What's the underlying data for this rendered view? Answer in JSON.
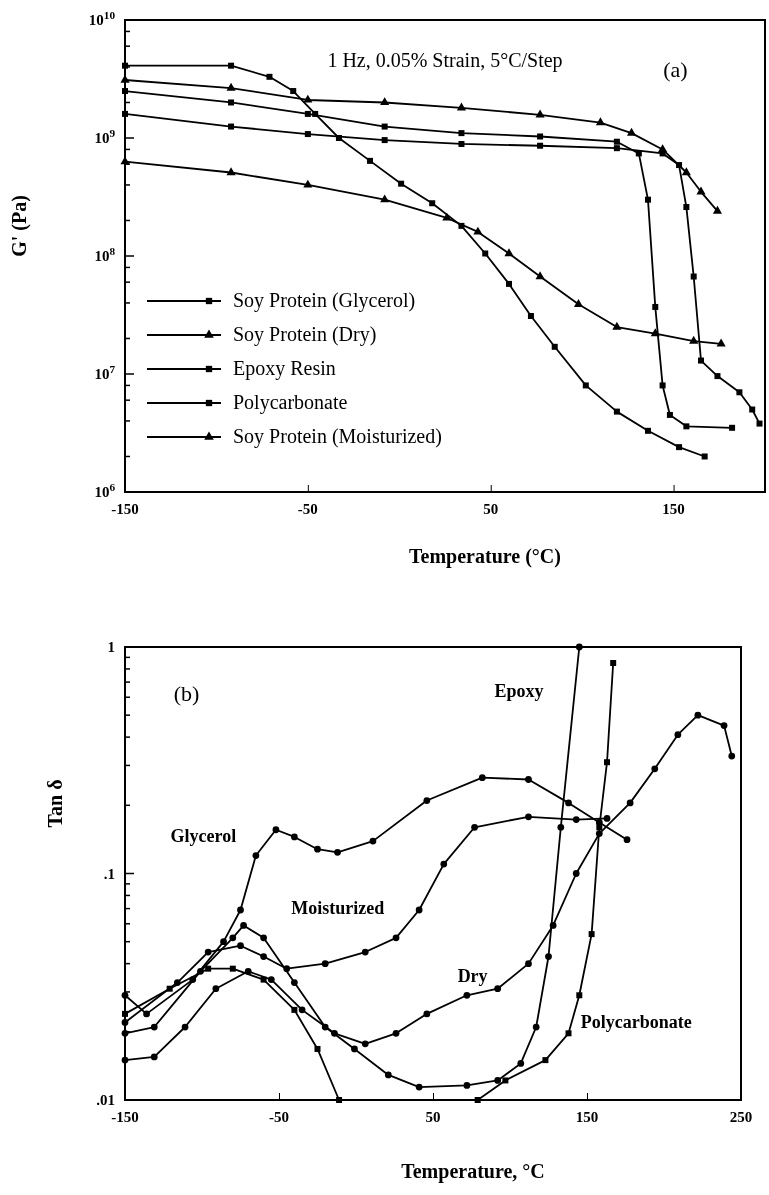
{
  "chart_data": [
    {
      "type": "line",
      "xlabel": "Temperature (°C)",
      "ylabel": "G' (Pa)",
      "log": "y",
      "xlim": [
        -150,
        200
      ],
      "xticks": [
        -150,
        -50,
        50,
        150
      ],
      "ylim": [
        1000000,
        10000000000
      ],
      "yticks": [
        {
          "value": 1000000,
          "label": "10$^{6}$"
        },
        {
          "value": 10000000,
          "label": "10$^{7}$"
        },
        {
          "value": 100000000,
          "label": "10$^{8}$"
        },
        {
          "value": 1000000000,
          "label": "10$^{9}$"
        },
        {
          "value": 10000000000,
          "label": "10$^{10}$"
        },
        {
          "value": 2000000,
          "label": null
        },
        {
          "value": 4000000,
          "label": null
        },
        {
          "value": 6000000,
          "label": null
        },
        {
          "value": 8000000,
          "label": null
        },
        {
          "value": 20000000,
          "label": null
        },
        {
          "value": 40000000,
          "label": null
        },
        {
          "value": 60000000,
          "label": null
        },
        {
          "value": 80000000,
          "label": null
        },
        {
          "value": 200000000,
          "label": null
        },
        {
          "value": 400000000,
          "label": null
        },
        {
          "value": 600000000,
          "label": null
        },
        {
          "value": 800000000,
          "label": null
        },
        {
          "value": 2000000000,
          "label": null
        },
        {
          "value": 4000000000,
          "label": null
        },
        {
          "value": 6000000000,
          "label": null
        },
        {
          "value": 8000000000,
          "label": null
        }
      ],
      "legend": "bottom left",
      "annotations": [
        "1 Hz, 0.05% Strain, 5°C/Step",
        "(a)"
      ],
      "series": [
        {
          "name": "Soy Protein (Glycerol)",
          "color": "#000000",
          "marker": "square",
          "x": [
            -150,
            -92,
            -71,
            -58,
            -46,
            -33,
            -16,
            1,
            18,
            34,
            47,
            60,
            72,
            85,
            102,
            119,
            136,
            153,
            167
          ],
          "values": [
            4100000000,
            4100000000,
            3300000000,
            2500000000,
            1600000000,
            1000000000,
            640000000,
            410000000,
            280000000,
            180000000,
            105000000,
            58000000,
            31000000,
            17000000,
            8000000,
            4800000,
            3300000,
            2400000,
            2000000
          ]
        },
        {
          "name": "Soy Protein (Dry)",
          "color": "#000000",
          "marker": "triangle",
          "x": [
            -150,
            -92,
            -50,
            -8,
            26,
            43,
            60,
            77,
            98,
            119,
            140,
            161,
            176
          ],
          "values": [
            630000000,
            510000000,
            400000000,
            300000000,
            210000000,
            160000000,
            105000000,
            67000000,
            39000000,
            25000000,
            22000000,
            19000000,
            18000000
          ]
        },
        {
          "name": "Epoxy Resin",
          "color": "#000000",
          "marker": "square",
          "x": [
            -150,
            -92,
            -50,
            -8,
            34,
            77,
            119,
            131,
            136,
            140,
            144,
            148,
            157,
            182
          ],
          "values": [
            2500000000,
            2000000000,
            1600000000,
            1250000000,
            1100000000,
            1030000000,
            930000000,
            740000000,
            300000000,
            37000000,
            8000000,
            4500000,
            3600000,
            3500000
          ]
        },
        {
          "name": "Polycarbonate",
          "color": "#000000",
          "marker": "square",
          "x": [
            -150,
            -92,
            -50,
            -8,
            34,
            77,
            119,
            144,
            153,
            157,
            161,
            165,
            174,
            186,
            193,
            197
          ],
          "values": [
            1600000000,
            1250000000,
            1080000000,
            960000000,
            890000000,
            860000000,
            820000000,
            740000000,
            590000000,
            260000000,
            67000000,
            13000000,
            9600000,
            7000000,
            5000000,
            3800000
          ]
        },
        {
          "name": "Soy Protein (Moisturized)",
          "color": "#000000",
          "marker": "triangle",
          "x": [
            -150,
            -92,
            -50,
            -8,
            34,
            77,
            110,
            127,
            144,
            157,
            165,
            174
          ],
          "values": [
            3100000000,
            2650000000,
            2100000000,
            2000000000,
            1800000000,
            1570000000,
            1350000000,
            1100000000,
            800000000,
            510000000,
            350000000,
            240000000
          ]
        }
      ]
    },
    {
      "type": "line",
      "xlabel": "Temperature, °C",
      "ylabel": "Tan δ",
      "log": "y",
      "xlim": [
        -150,
        250
      ],
      "xticks": [
        -150,
        -50,
        50,
        150,
        250
      ],
      "ylim": [
        0.01,
        1
      ],
      "yticks": [
        {
          "value": 0.01,
          "label": ".01"
        },
        {
          "value": 0.1,
          "label": ".1"
        },
        {
          "value": 1,
          "label": "1"
        },
        {
          "value": 0.02,
          "label": null
        },
        {
          "value": 0.03,
          "label": null
        },
        {
          "value": 0.04,
          "label": null
        },
        {
          "value": 0.05,
          "label": null
        },
        {
          "value": 0.06,
          "label": null
        },
        {
          "value": 0.07,
          "label": null
        },
        {
          "value": 0.08,
          "label": null
        },
        {
          "value": 0.09,
          "label": null
        },
        {
          "value": 0.2,
          "label": null
        },
        {
          "value": 0.3,
          "label": null
        },
        {
          "value": 0.4,
          "label": null
        },
        {
          "value": 0.5,
          "label": null
        },
        {
          "value": 0.6,
          "label": null
        },
        {
          "value": 0.7,
          "label": null
        },
        {
          "value": 0.8,
          "label": null
        },
        {
          "value": 0.9,
          "label": null
        }
      ],
      "annotations": [
        "(b)",
        "Epoxy",
        "Glycerol",
        "Moisturized",
        "Dry",
        "Polycarbonate"
      ],
      "series": [
        {
          "color": "#000000",
          "marker": "circle",
          "x": [
            -150,
            -136,
            -106,
            -86,
            -75,
            -65,
            -52,
            -40,
            -25,
            -12,
            11,
            46,
            82,
            112,
            138,
            158,
            176
          ],
          "values": [
            0.029,
            0.024,
            0.034,
            0.05,
            0.069,
            0.12,
            0.156,
            0.145,
            0.128,
            0.124,
            0.139,
            0.21,
            0.265,
            0.26,
            0.205,
            0.168,
            0.141
          ]
        },
        {
          "color": "#000000",
          "marker": "circle",
          "x": [
            -150,
            -116,
            -96,
            -75,
            -60,
            -45,
            -20,
            6,
            26,
            41,
            57,
            77,
            112,
            143,
            163
          ],
          "values": [
            0.022,
            0.033,
            0.045,
            0.048,
            0.043,
            0.038,
            0.04,
            0.045,
            0.052,
            0.069,
            0.11,
            0.16,
            0.178,
            0.173,
            0.175
          ]
        },
        {
          "color": "#000000",
          "marker": "circle",
          "x": [
            -150,
            -131,
            -111,
            -91,
            -70,
            -55,
            -35,
            -14,
            6,
            26,
            46,
            72,
            92,
            112,
            128,
            143,
            158,
            178,
            194,
            209,
            222,
            239,
            244
          ],
          "values": [
            0.015,
            0.0155,
            0.021,
            0.031,
            0.037,
            0.034,
            0.025,
            0.0197,
            0.0177,
            0.0197,
            0.024,
            0.029,
            0.031,
            0.04,
            0.059,
            0.1,
            0.15,
            0.205,
            0.29,
            0.41,
            0.5,
            0.45,
            0.33
          ]
        },
        {
          "color": "#000000",
          "marker": "circle",
          "x": [
            -150,
            -131,
            -101,
            -80,
            -73,
            -60,
            -40,
            -20,
            -1,
            21,
            41,
            72,
            92,
            107,
            117,
            125,
            133,
            145
          ],
          "values": [
            0.0197,
            0.021,
            0.037,
            0.052,
            0.059,
            0.052,
            0.033,
            0.021,
            0.0168,
            0.0129,
            0.0114,
            0.0116,
            0.0122,
            0.0145,
            0.021,
            0.043,
            0.16,
            1
          ]
        },
        {
          "color": "#000000",
          "marker": "square",
          "x": [
            -150,
            -121,
            -96,
            -80,
            -60,
            -40,
            -25,
            -11,
            30,
            79,
            97,
            123,
            138,
            145,
            153,
            158,
            163,
            167
          ],
          "values": [
            0.024,
            0.031,
            0.038,
            0.038,
            0.034,
            0.025,
            0.0168,
            0.01,
            null,
            0.01,
            0.0122,
            0.015,
            0.0197,
            0.029,
            0.054,
            0.16,
            0.31,
            0.85
          ]
        }
      ]
    }
  ]
}
